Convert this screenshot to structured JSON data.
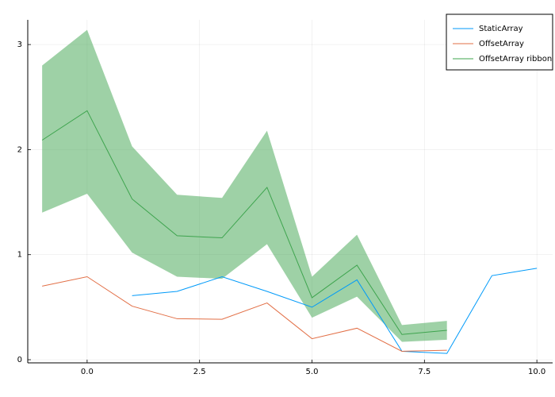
{
  "chart_data": {
    "type": "line",
    "xlim": [
      -1.32,
      10.35
    ],
    "ylim": [
      -0.03,
      3.235
    ],
    "xticks": [
      {
        "value": 0,
        "label": "0.0"
      },
      2.5,
      {
        "value": 5,
        "label": "5.0"
      },
      7.5,
      {
        "value": 10,
        "label": "10.0"
      }
    ],
    "yticks": [
      0,
      1,
      2,
      3
    ],
    "grid": true,
    "legend": "top-right",
    "series": [
      {
        "name": "StaticArray",
        "color": "#009af9",
        "x": [
          1,
          2,
          3,
          4,
          5,
          6,
          7,
          8,
          9,
          10
        ],
        "values": [
          0.61,
          0.65,
          0.79,
          0.65,
          0.5,
          0.76,
          0.08,
          0.06,
          0.8,
          0.87
        ]
      },
      {
        "name": "OffsetArray",
        "color": "#e26f46",
        "x": [
          -1,
          0,
          1,
          2,
          3,
          4,
          5,
          6,
          7,
          8
        ],
        "values": [
          0.7,
          0.79,
          0.51,
          0.39,
          0.385,
          0.54,
          0.2,
          0.3,
          0.08,
          0.09
        ]
      },
      {
        "name": "OffsetArray ribbon",
        "color": "#3ea44e",
        "x": [
          -1,
          0,
          1,
          2,
          3,
          4,
          5,
          6,
          7,
          8
        ],
        "values": [
          2.09,
          2.37,
          1.53,
          1.18,
          1.16,
          1.64,
          0.59,
          0.9,
          0.24,
          0.28
        ],
        "lower": [
          1.4,
          1.58,
          1.02,
          0.79,
          0.77,
          1.1,
          0.4,
          0.6,
          0.17,
          0.19
        ],
        "upper": [
          2.8,
          3.14,
          2.03,
          1.57,
          1.54,
          2.18,
          0.79,
          1.19,
          0.33,
          0.37
        ]
      }
    ]
  }
}
